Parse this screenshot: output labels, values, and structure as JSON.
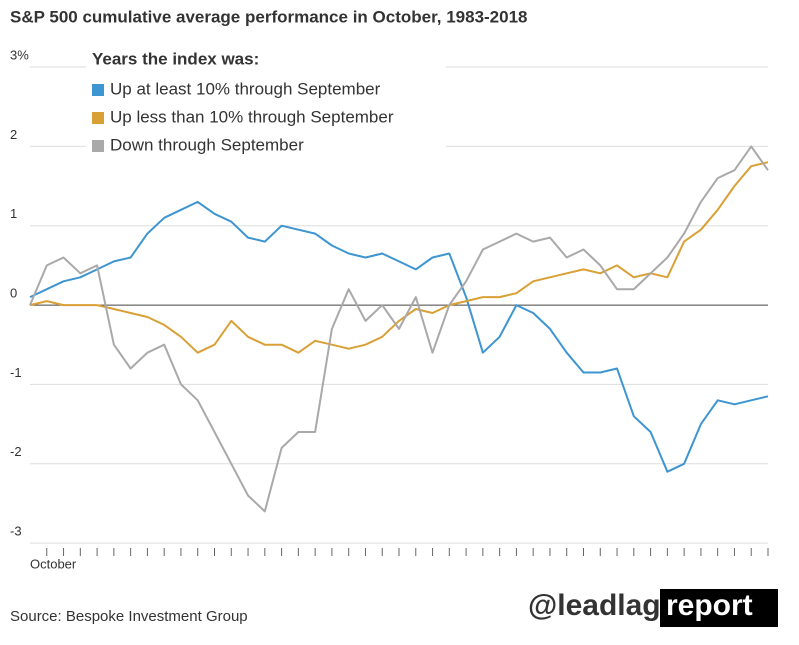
{
  "chart_data": {
    "type": "line",
    "title": "S&P 500 cumulative average performance in October, 1983-2018",
    "legend_title": "Years the index was:",
    "source": "Source: Bespoke Investment Group",
    "categories": [
      "October",
      null,
      null,
      null,
      null,
      null,
      null,
      null,
      null,
      null,
      null,
      null,
      null,
      null,
      null,
      null,
      null,
      null,
      null,
      null,
      null,
      null,
      null,
      null,
      null,
      null,
      null,
      null,
      null,
      null,
      null,
      null,
      null,
      null,
      null,
      null,
      null,
      null,
      null,
      null,
      null,
      null,
      null,
      null,
      null
    ],
    "ylim": [
      -3.2,
      3.0
    ],
    "yticks": [
      -3,
      -2,
      -1,
      0,
      1,
      2,
      {
        "value": 3,
        "label": "3%"
      }
    ],
    "grid": true,
    "series": [
      {
        "name": "Up at least 10% through September",
        "color": "#3d95d1",
        "values": [
          0.1,
          0.2,
          0.3,
          0.35,
          0.45,
          0.55,
          0.6,
          0.9,
          1.1,
          1.2,
          1.3,
          1.15,
          1.05,
          0.85,
          0.8,
          1.0,
          0.95,
          0.9,
          0.75,
          0.65,
          0.6,
          0.65,
          0.55,
          0.45,
          0.6,
          0.65,
          0.1,
          -0.6,
          -0.4,
          0.0,
          -0.1,
          -0.3,
          -0.6,
          -0.85,
          -0.85,
          -0.8,
          -1.4,
          -1.6,
          -2.1,
          -2.0,
          -1.5,
          -1.2,
          -1.25,
          -1.2,
          -1.15
        ]
      },
      {
        "name": "Up less than 10% through September",
        "color": "#d9a036",
        "values": [
          0.0,
          0.05,
          0.0,
          0.0,
          0.0,
          -0.05,
          -0.1,
          -0.15,
          -0.25,
          -0.4,
          -0.6,
          -0.5,
          -0.2,
          -0.4,
          -0.5,
          -0.5,
          -0.6,
          -0.45,
          -0.5,
          -0.55,
          -0.5,
          -0.4,
          -0.2,
          -0.05,
          -0.1,
          0.0,
          0.05,
          0.1,
          0.1,
          0.15,
          0.3,
          0.35,
          0.4,
          0.45,
          0.4,
          0.5,
          0.35,
          0.4,
          0.35,
          0.8,
          0.95,
          1.2,
          1.5,
          1.75,
          1.8
        ]
      },
      {
        "name": "Down through September",
        "color": "#a9a9a9",
        "values": [
          0.0,
          0.5,
          0.6,
          0.4,
          0.5,
          -0.5,
          -0.8,
          -0.6,
          -0.5,
          -1.0,
          -1.2,
          -1.6,
          -2.0,
          -2.4,
          -2.6,
          -1.8,
          -1.6,
          -1.6,
          -0.3,
          0.2,
          -0.2,
          0.0,
          -0.3,
          0.1,
          -0.6,
          0.0,
          0.3,
          0.7,
          0.8,
          0.9,
          0.8,
          0.85,
          0.6,
          0.7,
          0.5,
          0.2,
          0.2,
          0.4,
          0.6,
          0.9,
          1.3,
          1.6,
          1.7,
          2.0,
          1.7
        ]
      }
    ]
  },
  "watermark": {
    "prefix": "@leadlag",
    "suffix": "report"
  }
}
